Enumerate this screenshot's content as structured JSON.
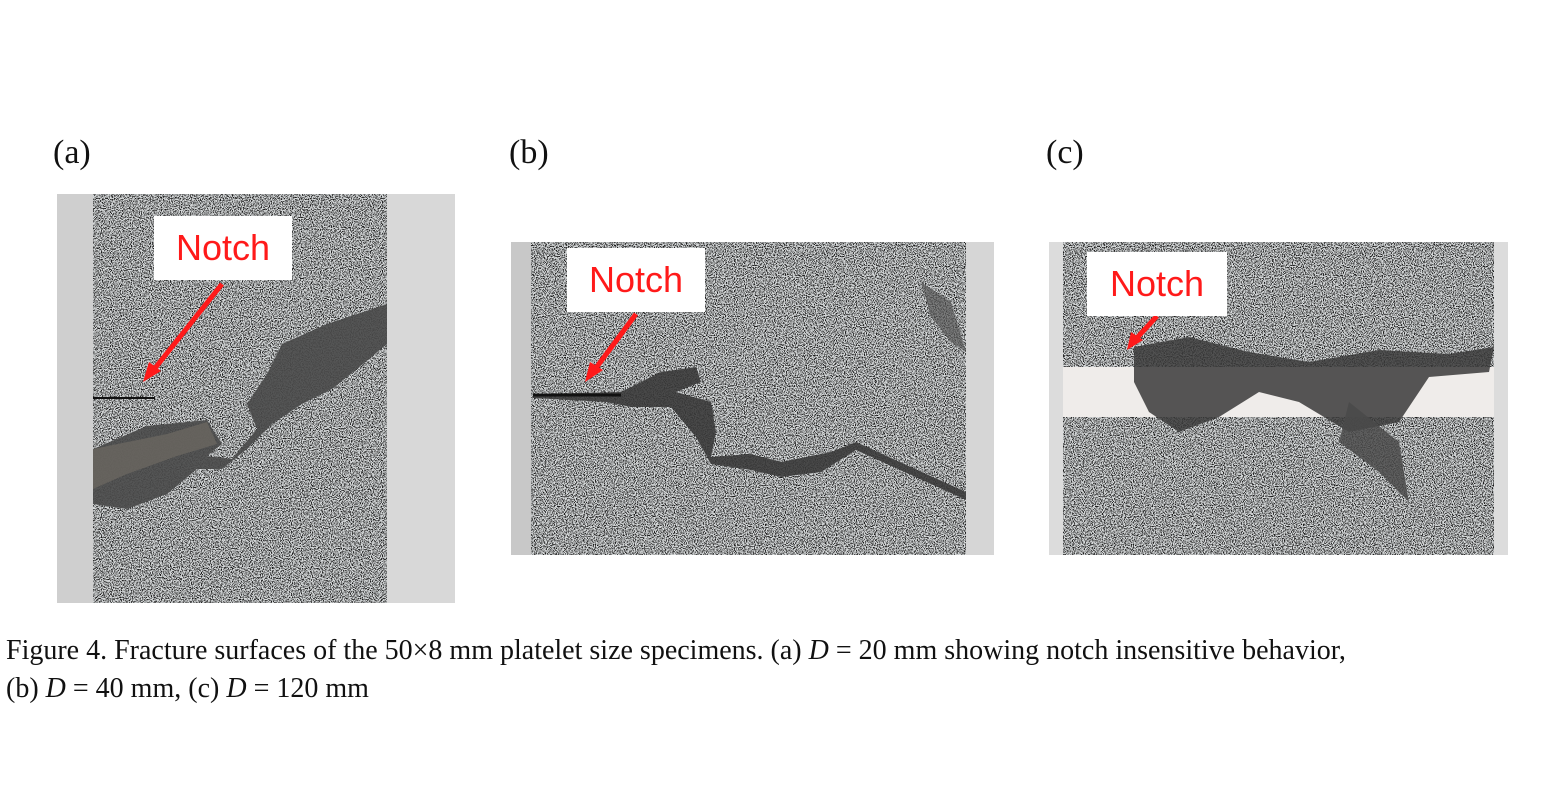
{
  "figure": {
    "panels": [
      {
        "id": "a",
        "label": "(a)",
        "notch_label": "Notch"
      },
      {
        "id": "b",
        "label": "(b)",
        "notch_label": "Notch"
      },
      {
        "id": "c",
        "label": "(c)",
        "notch_label": "Notch"
      }
    ],
    "caption": {
      "line1_prefix": "Figure 4. Fracture surfaces of the 50×8 mm platelet size specimens. (a) ",
      "line1_var": "D",
      "line1_suffix": " = 20 mm showing notch insensitive behavior,",
      "line2_part1": "(b) ",
      "line2_var1": "D",
      "line2_part2": " = 40 mm, (c) ",
      "line2_var2": "D",
      "line2_part3": " = 120 mm"
    },
    "colors": {
      "annotation_red": "#ff1a1a",
      "specimen_speckle": "#b8bec0",
      "fracture_dark": "#3a3a3a",
      "background_grey": "#d4d4d4"
    }
  }
}
